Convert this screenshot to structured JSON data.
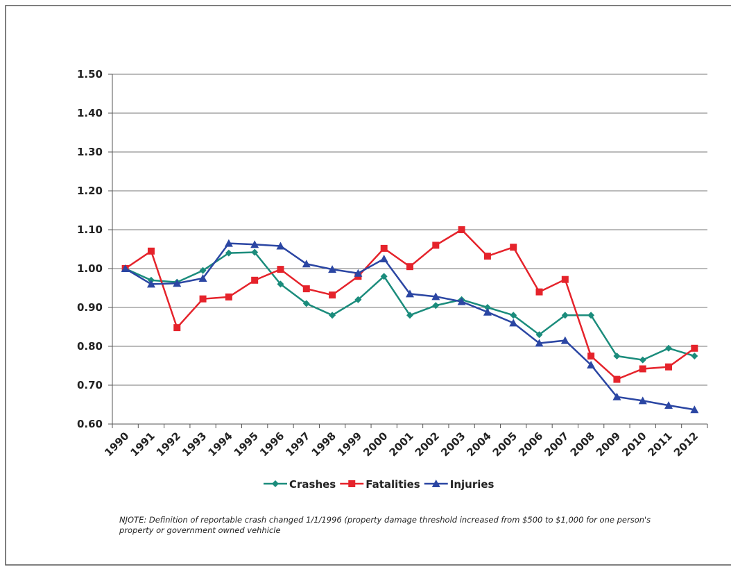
{
  "chart_data": {
    "type": "line",
    "categories": [
      "1990",
      "1991",
      "1992",
      "1993",
      "1994",
      "1995",
      "1996",
      "1997",
      "1998",
      "1999",
      "2000",
      "2001",
      "2002",
      "2003",
      "2004",
      "2005",
      "2006",
      "2007",
      "2008",
      "2009",
      "2010",
      "2011",
      "2012"
    ],
    "series": [
      {
        "name": "Crashes",
        "color": "#1b8c7c",
        "marker": "diamond",
        "values": [
          1.0,
          0.97,
          0.965,
          0.995,
          1.04,
          1.042,
          0.96,
          0.91,
          0.88,
          0.92,
          0.98,
          0.88,
          0.905,
          0.92,
          0.9,
          0.88,
          0.83,
          0.88,
          0.88,
          0.775,
          0.765,
          0.795,
          0.775
        ]
      },
      {
        "name": "Fatalities",
        "color": "#e5232b",
        "marker": "square",
        "values": [
          1.0,
          1.045,
          0.848,
          0.922,
          0.927,
          0.97,
          0.998,
          0.948,
          0.932,
          0.98,
          1.052,
          1.005,
          1.06,
          1.1,
          1.032,
          1.055,
          0.94,
          0.972,
          0.775,
          0.715,
          0.742,
          0.747,
          0.795
        ]
      },
      {
        "name": "Injuries",
        "color": "#2b46a3",
        "marker": "triangle",
        "values": [
          1.0,
          0.96,
          0.962,
          0.975,
          1.065,
          1.062,
          1.058,
          1.012,
          0.998,
          0.988,
          1.025,
          0.935,
          0.928,
          0.915,
          0.888,
          0.86,
          0.808,
          0.815,
          0.752,
          0.67,
          0.66,
          0.648,
          0.637
        ]
      }
    ],
    "ylim": [
      0.6,
      1.5
    ],
    "yticks": [
      {
        "value": 0.6,
        "label": "0.60"
      },
      {
        "value": 0.7,
        "label": "0.70"
      },
      {
        "value": 0.8,
        "label": "0.80"
      },
      {
        "value": 0.9,
        "label": "0.90"
      },
      {
        "value": 1.0,
        "label": "1.00"
      },
      {
        "value": 1.1,
        "label": "1.10"
      },
      {
        "value": 1.2,
        "label": "1.20"
      },
      {
        "value": 1.3,
        "label": "1.30"
      },
      {
        "value": 1.4,
        "label": "1.40"
      },
      {
        "value": 1.5,
        "label": "1.50"
      }
    ],
    "grid": true,
    "legend": "bottom",
    "note": "NJOTE:  Definition of reportable crash changed 1/1/1996 (property damage threshold increased from $500 to $1,000 for one person's property or government owned vehhicle"
  }
}
